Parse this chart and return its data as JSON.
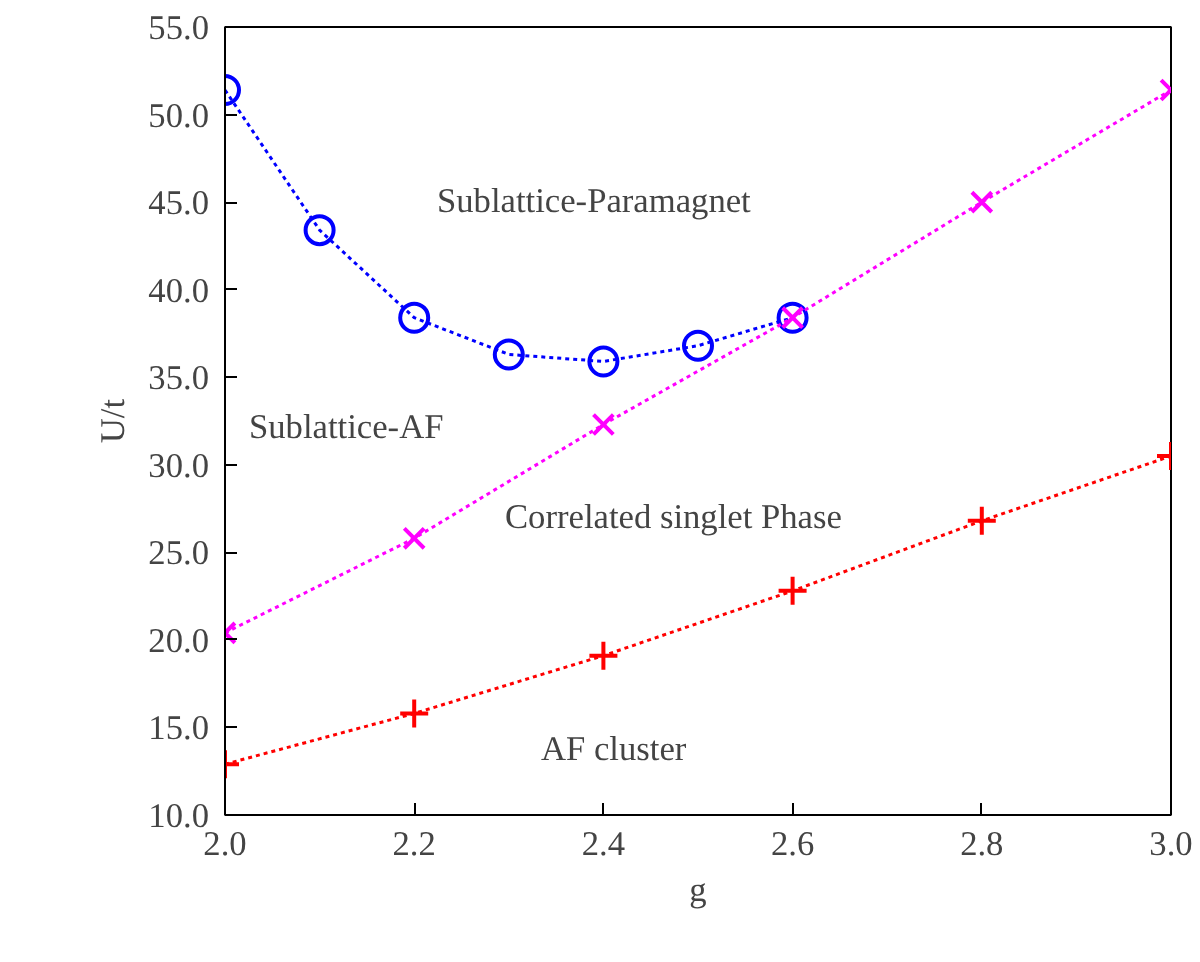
{
  "chart_data": {
    "type": "line",
    "xlabel": "g",
    "ylabel": "U/t",
    "xlim": [
      2.0,
      3.0
    ],
    "ylim": [
      10.0,
      55.0
    ],
    "xticks": [
      {
        "value": 2.0,
        "label": "2.0"
      },
      {
        "value": 2.2,
        "label": "2.2"
      },
      {
        "value": 2.4,
        "label": "2.4"
      },
      {
        "value": 2.6,
        "label": "2.6"
      },
      {
        "value": 2.8,
        "label": "2.8"
      },
      {
        "value": 3.0,
        "label": "3.0"
      }
    ],
    "yticks": [
      {
        "value": 10,
        "label": "10.0"
      },
      {
        "value": 15,
        "label": "15.0"
      },
      {
        "value": 20,
        "label": "20.0"
      },
      {
        "value": 25,
        "label": "25.0"
      },
      {
        "value": 30,
        "label": "30.0"
      },
      {
        "value": 35,
        "label": "35.0"
      },
      {
        "value": 40,
        "label": "40.0"
      },
      {
        "value": 45,
        "label": "45.0"
      },
      {
        "value": 50,
        "label": "50.0"
      },
      {
        "value": 55,
        "label": "55.0"
      }
    ],
    "grid": false,
    "line_style": "dotted",
    "series": [
      {
        "color": "#0000ff",
        "marker": "circle",
        "x": [
          2.0,
          2.1,
          2.2,
          2.3,
          2.4,
          2.5,
          2.6
        ],
        "values": [
          51.4,
          43.4,
          38.4,
          36.3,
          35.9,
          36.8,
          38.4
        ]
      },
      {
        "color": "#ff00ff",
        "marker": "x",
        "x": [
          2.0,
          2.2,
          2.4,
          2.6,
          2.8,
          3.0
        ],
        "values": [
          20.4,
          25.8,
          32.3,
          38.4,
          45.0,
          51.4
        ]
      },
      {
        "color": "#ff0000",
        "marker": "cross",
        "x": [
          2.0,
          2.2,
          2.4,
          2.6,
          2.8,
          3.0
        ],
        "values": [
          12.9,
          15.8,
          19.1,
          22.8,
          26.8,
          30.5
        ]
      }
    ],
    "annotations": [
      "Sublattice-Paramagnet",
      "Sublattice-AF",
      "Correlated singlet Phase",
      "AF cluster"
    ]
  }
}
